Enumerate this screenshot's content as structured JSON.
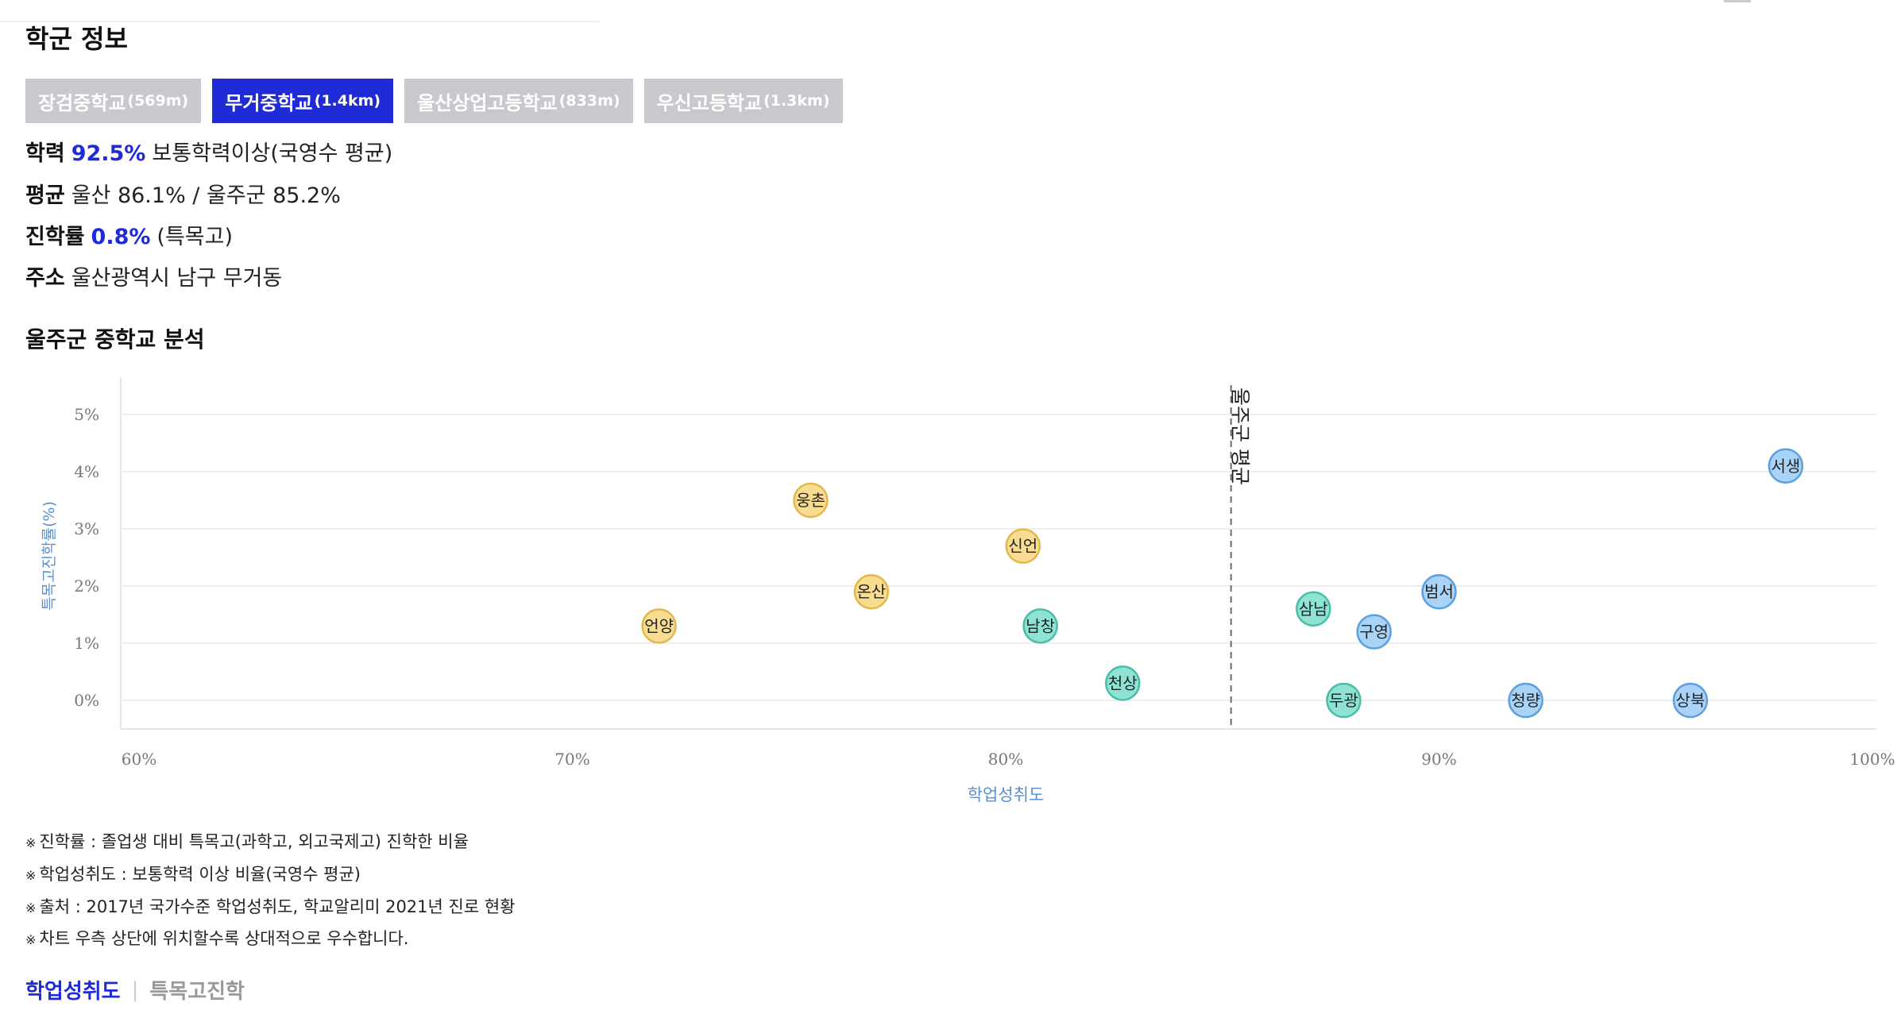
{
  "header": {
    "title": "학군 정보"
  },
  "school_tabs": [
    {
      "name": "장검중학교",
      "distance": "(569m)",
      "active": false
    },
    {
      "name": "무거중학교",
      "distance": "(1.4km)",
      "active": true
    },
    {
      "name": "울산상업고등학교",
      "distance": "(833m)",
      "active": false
    },
    {
      "name": "우신고등학교",
      "distance": "(1.3km)",
      "active": false
    }
  ],
  "info": {
    "academic": {
      "label": "학력",
      "value": "92.5%",
      "desc": "보통학력이상(국영수 평균)"
    },
    "average": {
      "label": "평균",
      "desc": "울산 86.1% / 울주군 85.2%"
    },
    "advancement": {
      "label": "진학률",
      "value": "0.8%",
      "desc": "(특목고)"
    },
    "address": {
      "label": "주소",
      "desc": "울산광역시 남구 무거동"
    }
  },
  "analysis": {
    "title": "울주군 중학교 분석"
  },
  "colors": {
    "accent": "#1e2bd6",
    "tab_inactive": "#c8c9cc",
    "yellow_fill": "#f8dd91",
    "yellow_stroke": "#e2b84c",
    "teal_fill": "#8fe3d4",
    "teal_stroke": "#49bda9",
    "blue_fill": "#a9d4f7",
    "blue_stroke": "#5b9fe0",
    "axis_label": "#5b8fd0"
  },
  "chart_data": {
    "type": "scatter",
    "xlabel": "학업성취도",
    "ylabel": "특목고진학률(%)",
    "xlim": [
      60,
      100
    ],
    "ylim": [
      -0.5,
      5.5
    ],
    "x_ticks": [
      60,
      70,
      80,
      90,
      100
    ],
    "x_tick_labels": [
      "60%",
      "70%",
      "80%",
      "90%",
      "100%"
    ],
    "y_ticks": [
      0,
      1,
      2,
      3,
      4,
      5
    ],
    "y_tick_labels": [
      "0%",
      "1%",
      "2%",
      "3%",
      "4%",
      "5%"
    ],
    "grid": true,
    "reference_line": {
      "x": 85.2,
      "label": "울주군 평균"
    },
    "points": [
      {
        "name": "언양",
        "x": 72.0,
        "y": 1.3,
        "color": "yellow"
      },
      {
        "name": "웅촌",
        "x": 75.5,
        "y": 3.5,
        "color": "yellow"
      },
      {
        "name": "온산",
        "x": 76.9,
        "y": 1.9,
        "color": "yellow"
      },
      {
        "name": "신언",
        "x": 80.4,
        "y": 2.7,
        "color": "yellow"
      },
      {
        "name": "남창",
        "x": 80.8,
        "y": 1.3,
        "color": "teal"
      },
      {
        "name": "천상",
        "x": 82.7,
        "y": 0.3,
        "color": "teal"
      },
      {
        "name": "삼남",
        "x": 87.1,
        "y": 1.6,
        "color": "teal"
      },
      {
        "name": "두광",
        "x": 87.8,
        "y": 0.0,
        "color": "teal"
      },
      {
        "name": "구영",
        "x": 88.5,
        "y": 1.2,
        "color": "blue"
      },
      {
        "name": "범서",
        "x": 90.0,
        "y": 1.9,
        "color": "blue"
      },
      {
        "name": "청량",
        "x": 92.0,
        "y": 0.0,
        "color": "blue"
      },
      {
        "name": "상북",
        "x": 95.8,
        "y": 0.0,
        "color": "blue"
      },
      {
        "name": "서생",
        "x": 98.0,
        "y": 4.1,
        "color": "blue"
      }
    ]
  },
  "notes": [
    "진학률 : 졸업생 대비 특목고(과학고, 외고국제고) 진학한 비율",
    "학업성취도 : 보통학력 이상 비율(국영수 평균)",
    "출처 : 2017년 국가수준 학업성취도, 학교알리미 2021년 진로 현황",
    "차트 우측 상단에 위치할수록 상대적으로 우수합니다."
  ],
  "note_mark": "※",
  "bottom_tabs": {
    "active": "학업성취도",
    "separator": "|",
    "inactive": "특목고진학"
  }
}
